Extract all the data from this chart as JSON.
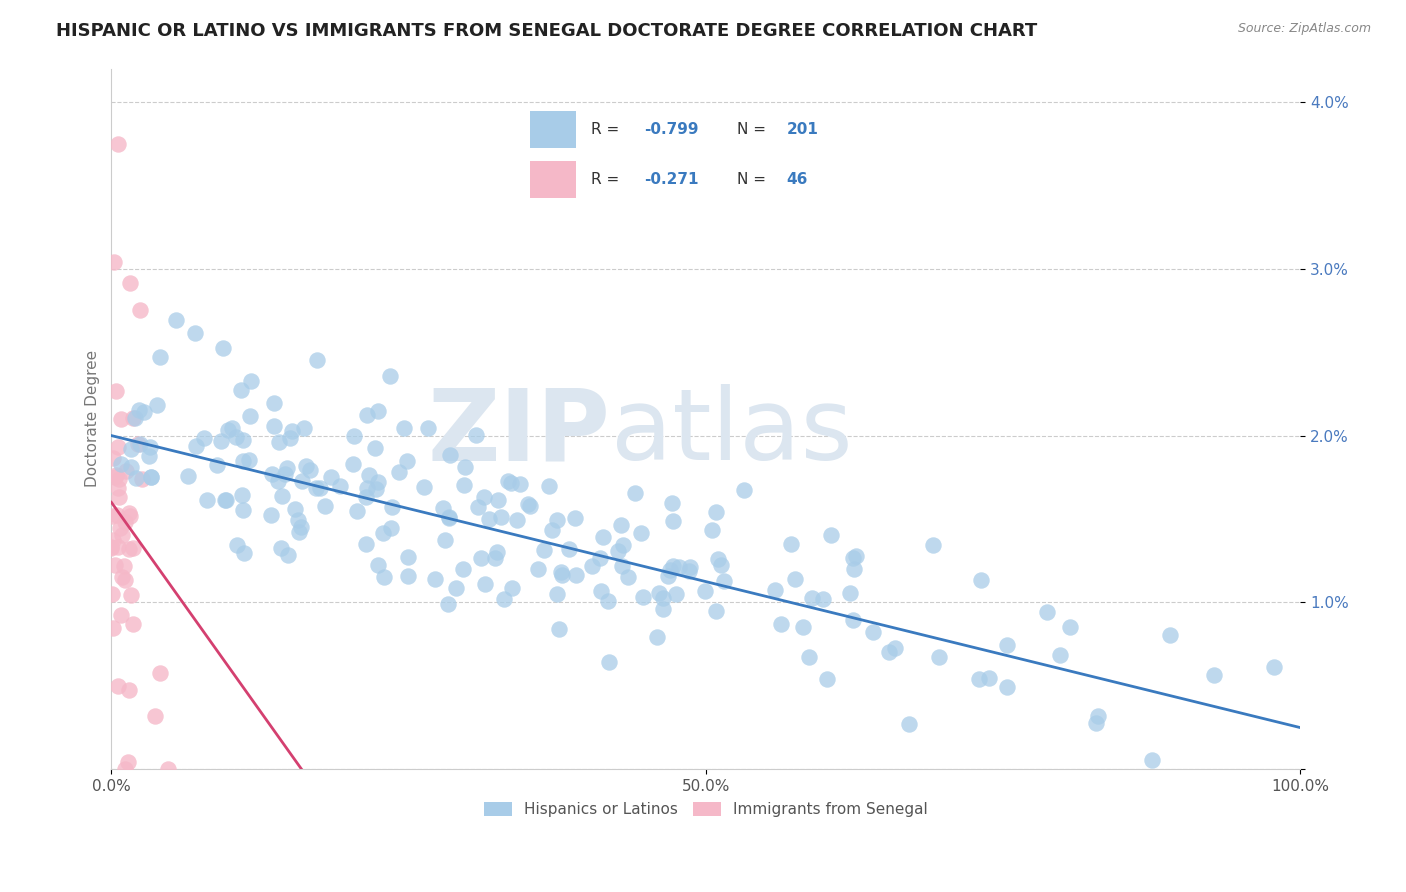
{
  "title": "HISPANIC OR LATINO VS IMMIGRANTS FROM SENEGAL DOCTORATE DEGREE CORRELATION CHART",
  "source": "Source: ZipAtlas.com",
  "ylabel": "Doctorate Degree",
  "legend_labels": [
    "Hispanics or Latinos",
    "Immigrants from Senegal"
  ],
  "blue_R": -0.799,
  "blue_N": 201,
  "pink_R": -0.271,
  "pink_N": 46,
  "blue_color": "#a8cce8",
  "pink_color": "#f5b8c8",
  "blue_line_color": "#3a7abf",
  "pink_line_color": "#d44070",
  "xlim": [
    0.0,
    1.0
  ],
  "ylim": [
    0.0,
    0.042
  ],
  "yticks": [
    0.0,
    0.01,
    0.02,
    0.03,
    0.04
  ],
  "ytick_labels": [
    "",
    "1.0%",
    "2.0%",
    "3.0%",
    "4.0%"
  ],
  "background_color": "#ffffff",
  "grid_color": "#cccccc",
  "watermark_zip": "ZIP",
  "watermark_atlas": "atlas",
  "watermark_color": "#dce6f0",
  "title_fontsize": 13,
  "axis_label_fontsize": 11,
  "tick_fontsize": 11,
  "blue_seed": 42,
  "pink_seed": 123,
  "blue_intercept": 0.02,
  "blue_slope": -0.0175,
  "pink_intercept": 0.016,
  "pink_slope": -0.1
}
